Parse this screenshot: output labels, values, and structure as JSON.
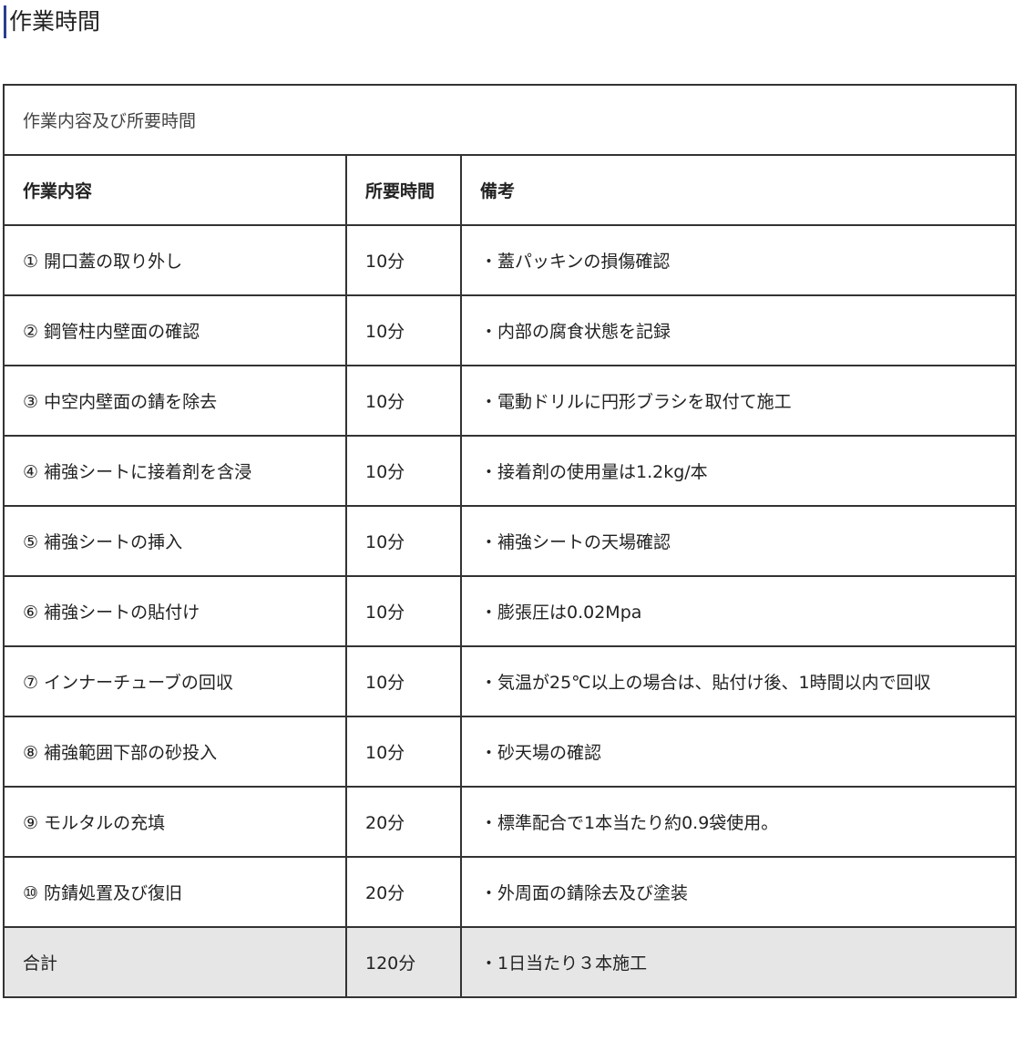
{
  "title": "作業時間",
  "table": {
    "caption": "作業内容及び所要時間",
    "headers": [
      "作業内容",
      "所要時間",
      "備考"
    ],
    "rows": [
      [
        "① 開口蓋の取り外し",
        "10分",
        "・蓋パッキンの損傷確認"
      ],
      [
        "② 鋼管柱内壁面の確認",
        "10分",
        "・内部の腐食状態を記録"
      ],
      [
        "③ 中空内壁面の錆を除去",
        "10分",
        "・電動ドリルに円形ブラシを取付て施工"
      ],
      [
        "④ 補強シートに接着剤を含浸",
        "10分",
        "・接着剤の使用量は1.2kg/本"
      ],
      [
        "⑤ 補強シートの挿入",
        "10分",
        "・補強シートの天場確認"
      ],
      [
        "⑥ 補強シートの貼付け",
        "10分",
        "・膨張圧は0.02Mpa"
      ],
      [
        "⑦ インナーチューブの回収",
        "10分",
        "・気温が25℃以上の場合は、貼付け後、1時間以内で回収"
      ],
      [
        "⑧ 補強範囲下部の砂投入",
        "10分",
        "・砂天場の確認"
      ],
      [
        "⑨ モルタルの充填",
        "20分",
        "・標準配合で1本当たり約0.9袋使用。"
      ],
      [
        "⑩ 防錆処置及び復旧",
        "20分",
        "・外周面の錆除去及び塗装"
      ]
    ],
    "total": [
      "合計",
      "120分",
      "・1日当たり３本施工"
    ]
  },
  "colors": {
    "title_bar": "#2a3f8f",
    "total_row_bg": "#e6e6e6",
    "border": "#333333"
  }
}
